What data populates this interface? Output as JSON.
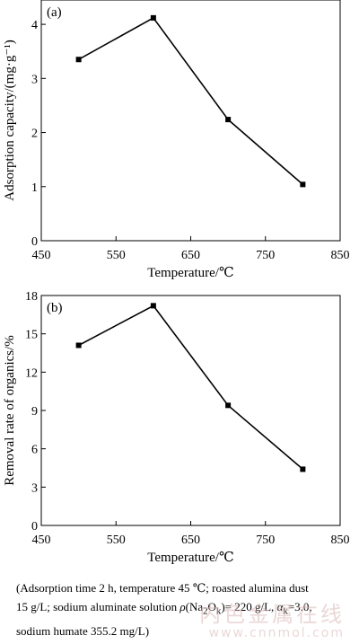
{
  "chart_data": [
    {
      "type": "line",
      "panel_label": "(a)",
      "x": [
        500,
        600,
        700,
        800
      ],
      "series": [
        {
          "values": [
            3.35,
            4.12,
            2.24,
            1.04
          ]
        }
      ],
      "xlabel": "Temperature/℃",
      "ylabel": "Adsorption capacity/(mg·g⁻¹)",
      "xlim": [
        450,
        850
      ],
      "ylim": [
        0,
        4.45
      ],
      "xticks": [
        450,
        550,
        650,
        750,
        850
      ],
      "yticks": [
        0,
        1,
        2,
        3,
        4
      ],
      "marker": "square",
      "grid": false,
      "color": "#000000"
    },
    {
      "type": "line",
      "panel_label": "(b)",
      "x": [
        500,
        600,
        700,
        800
      ],
      "series": [
        {
          "values": [
            14.1,
            17.2,
            9.4,
            4.4
          ]
        }
      ],
      "xlabel": "Temperature/℃",
      "ylabel": "Removal rate of organics/%",
      "xlim": [
        450,
        850
      ],
      "ylim": [
        0,
        18
      ],
      "xticks": [
        450,
        550,
        650,
        750,
        850
      ],
      "yticks": [
        0,
        3,
        6,
        9,
        12,
        15,
        18
      ],
      "marker": "square",
      "grid": false,
      "color": "#000000"
    }
  ],
  "caption": {
    "line1": "(Adsorption time 2 h, temperature 45 ℃; roasted alumina dust",
    "line2_pre": "15 g/L; sodium aluminate solution ",
    "rho": "ρ",
    "paren_open": "(Na",
    "sub_2": "2",
    "o_text": "O",
    "sub_k": "k",
    "eq_220": ")= 220 g/L, ",
    "alpha": "α",
    "sub_k2": "k",
    "eq_30": "=3.0,",
    "line3": "sodium humate 355.2 mg/L)"
  },
  "watermark": {
    "cn": "内色金属在线",
    "url": "www.cnnmol.com"
  }
}
